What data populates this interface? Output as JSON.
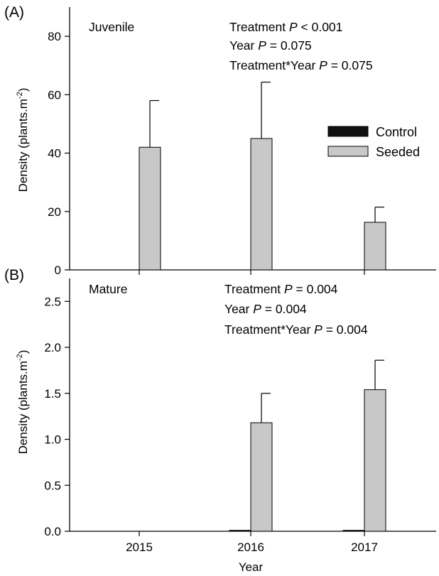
{
  "colors": {
    "control": "#111111",
    "seeded": "#c8c8c8",
    "axis": "#000000"
  },
  "legend": {
    "placement": "right, middle of panel A",
    "entries": [
      {
        "name": "Control",
        "color": "#111111"
      },
      {
        "name": "Seeded",
        "color": "#c8c8c8"
      }
    ]
  },
  "xlabel": "Year",
  "chart_data": [
    {
      "type": "bar",
      "panel_label": "(A)",
      "stage_label": "Juvenile",
      "ylabel_main": "Density (plants.m",
      "ylabel_sup": "-2",
      "ylabel_end": ")",
      "categories": [
        "2015",
        "2016",
        "2017"
      ],
      "ylim": [
        0,
        90
      ],
      "yticks": [
        "0",
        "20",
        "40",
        "60",
        "80"
      ],
      "ytick_values": [
        0,
        20,
        40,
        60,
        80
      ],
      "series": [
        {
          "name": "Control",
          "values": [
            0,
            0,
            0
          ],
          "errors": [
            0,
            0,
            0
          ]
        },
        {
          "name": "Seeded",
          "values": [
            42,
            45,
            16.3
          ],
          "errors": [
            16,
            19.3,
            5.2
          ]
        }
      ],
      "annotations": [
        {
          "prefix": "Treatment ",
          "p": "P",
          "suffix": " < 0.001"
        },
        {
          "prefix": "Year ",
          "p": "P",
          "suffix": " = 0.075"
        },
        {
          "prefix": "Treatment*Year ",
          "p": "P",
          "suffix": " = 0.075"
        }
      ]
    },
    {
      "type": "bar",
      "panel_label": "(B)",
      "stage_label": "Mature",
      "ylabel_main": "Density (plants.m",
      "ylabel_sup": "-2",
      "ylabel_end": ")",
      "categories": [
        "2015",
        "2016",
        "2017"
      ],
      "xticks": [
        "2015",
        "2016",
        "2017"
      ],
      "ylim": [
        0,
        2.75
      ],
      "yticks": [
        "0.0",
        "0.5",
        "1.0",
        "1.5",
        "2.0",
        "2.5"
      ],
      "ytick_values": [
        0,
        0.5,
        1.0,
        1.5,
        2.0,
        2.5
      ],
      "series": [
        {
          "name": "Control",
          "values": [
            0,
            0.01,
            0.01
          ],
          "errors": [
            0,
            0,
            0
          ]
        },
        {
          "name": "Seeded",
          "values": [
            0,
            1.18,
            1.54
          ],
          "errors": [
            0,
            0.32,
            0.32
          ]
        }
      ],
      "annotations": [
        {
          "prefix": "Treatment ",
          "p": "P",
          "suffix": " = 0.004"
        },
        {
          "prefix": "Year ",
          "p": "P",
          "suffix": " = 0.004"
        },
        {
          "prefix": "Treatment*Year ",
          "p": "P",
          "suffix": " = 0.004"
        }
      ]
    }
  ]
}
